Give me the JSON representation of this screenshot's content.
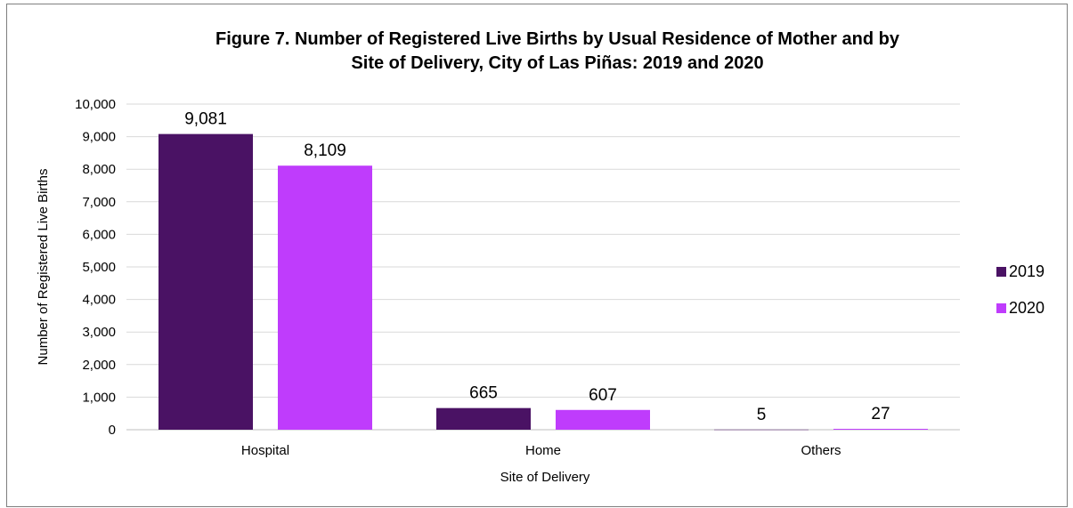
{
  "chart_data": {
    "type": "bar",
    "title_line1": "Figure 7. Number of Registered Live Births by Usual Residence of Mother and by",
    "title_line2": "Site of Delivery, City of Las Piñas: 2019 and 2020",
    "xlabel": "Site of Delivery",
    "ylabel": "Number of Registered Live Births",
    "categories": [
      "Hospital",
      "Home",
      "Others"
    ],
    "series": [
      {
        "name": "2019",
        "color": "#4a1264",
        "values": [
          9081,
          665,
          5
        ],
        "labels": [
          "9,081",
          "665",
          "5"
        ]
      },
      {
        "name": "2020",
        "color": "#bf3cfc",
        "values": [
          8109,
          607,
          27
        ],
        "labels": [
          "8,109",
          "607",
          "27"
        ]
      }
    ],
    "ylim": [
      0,
      10000
    ],
    "yticks": [
      0,
      1000,
      2000,
      3000,
      4000,
      5000,
      6000,
      7000,
      8000,
      9000,
      10000
    ],
    "ytick_labels": [
      "0",
      "1,000",
      "2,000",
      "3,000",
      "4,000",
      "5,000",
      "6,000",
      "7,000",
      "8,000",
      "9,000",
      "10,000"
    ],
    "grid": true,
    "legend_position": "right",
    "gridline_color": "#d9d9d9"
  }
}
